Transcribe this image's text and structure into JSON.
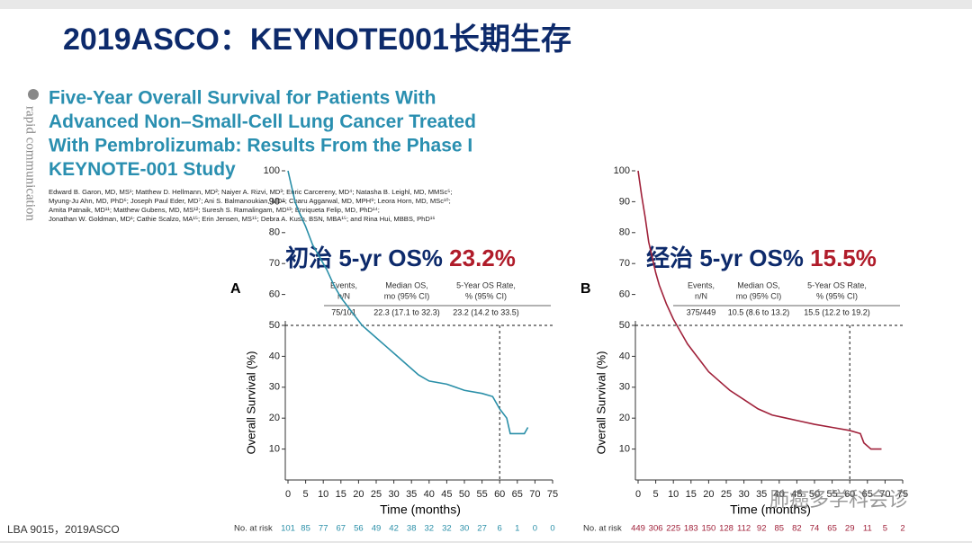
{
  "slide_title": "2019ASCO：KEYNOTE001长期生存",
  "side_label": "rapid communication",
  "paper_title": [
    "Five-Year Overall Survival for Patients With",
    "Advanced Non–Small-Cell Lung Cancer Treated",
    "With Pembrolizumab: Results From the Phase I",
    "KEYNOTE-001 Study"
  ],
  "authors": [
    "Edward B. Garon, MD, MS¹; Matthew D. Hellmann, MD²; Naiyer A. Rizvi, MD³; Enric Carcereny, MD⁴; Natasha B. Leighl, MD, MMSc⁵;",
    "Myung-Ju Ahn, MD, PhD⁶; Joseph Paul Eder, MD⁷; Ani S. Balmanoukian, MD⁸; Charu Aggarwal, MD, MPH⁹; Leora Horn, MD, MSc¹⁰;",
    "Amita Patnaik, MD¹¹; Matthew Gubens, MD, MS¹²; Suresh S. Ramalingam, MD¹³; Enriqueta Felip, MD, PhD¹⁴;",
    "Jonathan W. Goldman, MD¹; Cathie Scalzo, MA¹⁵; Erin Jensen, MS¹⁵; Debra A. Kush, BSN, MBA¹⁵; and Rina Hui, MBBS, PhD¹⁶"
  ],
  "footer": "LBA 9015，2019ASCO",
  "watermark": "肺癌多学科会诊",
  "chart_data": [
    {
      "type": "line",
      "panel": "A",
      "heading": "初治 5-yr OS%",
      "heading_value": "23.2%",
      "table": {
        "header": [
          [
            "Events,",
            "n/N"
          ],
          [
            "Median OS,",
            "mo (95% CI)"
          ],
          [
            "5-Year OS Rate,",
            "% (95% CI)"
          ]
        ],
        "row": [
          "75/101",
          "22.3 (17.1 to 32.3)",
          "23.2 (14.2 to 33.5)"
        ]
      },
      "y_label": "Overall Survival (%)",
      "x_label": "Time (months)",
      "color": "#2a8fa8",
      "x": [
        0,
        1,
        2,
        3,
        5,
        7,
        9,
        11,
        13,
        15,
        17,
        19,
        21,
        23,
        25,
        28,
        31,
        34,
        37,
        40,
        45,
        50,
        55,
        58,
        60,
        62,
        63,
        67,
        68
      ],
      "values": [
        100,
        95,
        90,
        87,
        82,
        76,
        72,
        68,
        63,
        59,
        56,
        53,
        50,
        48,
        46,
        43,
        40,
        37,
        34,
        32,
        31,
        29,
        28,
        27,
        23,
        20,
        15,
        15,
        17
      ],
      "reference_lines": {
        "x": 60,
        "y": 50
      },
      "xlim": [
        0,
        75
      ],
      "xticks": [
        0,
        5,
        10,
        15,
        20,
        25,
        30,
        35,
        40,
        45,
        50,
        55,
        60,
        65,
        70,
        75
      ],
      "ylim": [
        0,
        100
      ],
      "yticks": [
        10,
        20,
        30,
        40,
        50,
        60,
        70,
        80,
        90,
        100
      ],
      "at_risk_label": "No. at risk",
      "at_risk": [
        101,
        85,
        77,
        67,
        56,
        49,
        42,
        38,
        32,
        32,
        30,
        27,
        6,
        1,
        0,
        0
      ]
    },
    {
      "type": "line",
      "panel": "B",
      "heading": "经治 5-yr OS%",
      "heading_value": "15.5%",
      "table": {
        "header": [
          [
            "Events,",
            "n/N"
          ],
          [
            "Median OS,",
            "mo (95% CI)"
          ],
          [
            "5-Year OS Rate,",
            "% (95% CI)"
          ]
        ],
        "row": [
          "375/449",
          "10.5 (8.6 to 13.2)",
          "15.5 (12.2 to 19.2)"
        ]
      },
      "y_label": "Overall Survival (%)",
      "x_label": "Time (months)",
      "color": "#a0213a",
      "x": [
        0,
        1,
        2,
        3,
        4,
        5,
        6,
        8,
        10,
        12,
        14,
        16,
        18,
        20,
        23,
        26,
        30,
        34,
        38,
        42,
        46,
        50,
        55,
        60,
        63,
        64,
        66,
        69
      ],
      "values": [
        100,
        92,
        85,
        77,
        72,
        67,
        63,
        57,
        52,
        48,
        44,
        41,
        38,
        35,
        32,
        29,
        26,
        23,
        21,
        20,
        19,
        18,
        17,
        16,
        15,
        12,
        10,
        10
      ],
      "reference_lines": {
        "x": 60,
        "y": 50
      },
      "xlim": [
        0,
        75
      ],
      "xticks": [
        0,
        5,
        10,
        15,
        20,
        25,
        30,
        35,
        40,
        45,
        50,
        55,
        60,
        65,
        70,
        75
      ],
      "ylim": [
        0,
        100
      ],
      "yticks": [
        10,
        20,
        30,
        40,
        50,
        60,
        70,
        80,
        90,
        100
      ],
      "at_risk_label": "No. at risk",
      "at_risk": [
        449,
        306,
        225,
        183,
        150,
        128,
        112,
        92,
        85,
        82,
        74,
        65,
        29,
        11,
        5,
        2
      ]
    }
  ]
}
